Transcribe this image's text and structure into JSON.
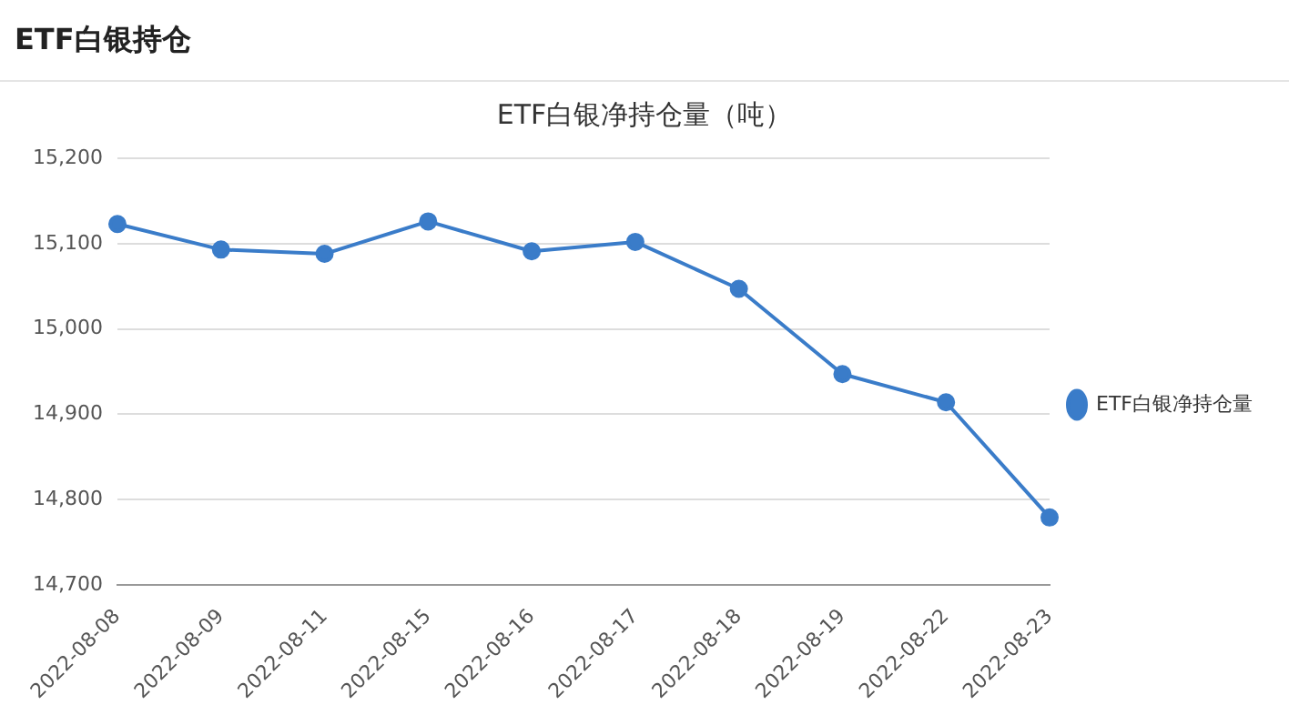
{
  "chart_data": {
    "type": "line",
    "title": "ETF白银持仓",
    "subtitle": "ETF白银净持仓量（吨）",
    "categories": [
      "2022-08-08",
      "2022-08-09",
      "2022-08-11",
      "2022-08-15",
      "2022-08-16",
      "2022-08-17",
      "2022-08-18",
      "2022-08-19",
      "2022-08-22",
      "2022-08-23"
    ],
    "series": [
      {
        "name": "ETF白银净持仓量",
        "color": "#3a7cc9",
        "values": [
          15123,
          15093,
          15088,
          15126,
          15091,
          15102,
          15047,
          14947,
          14914,
          14779
        ]
      }
    ],
    "ylim": [
      14700,
      15200
    ],
    "yticks": [
      {
        "value": 14700,
        "label": "14,700"
      },
      {
        "value": 14800,
        "label": "14,800"
      },
      {
        "value": 14900,
        "label": "14,900"
      },
      {
        "value": 15000,
        "label": "15,000"
      },
      {
        "value": 15100,
        "label": "15,100"
      },
      {
        "value": 15200,
        "label": "15,200"
      }
    ],
    "grid": "y",
    "legend": "right",
    "marker": "circle",
    "line_style": "solid"
  }
}
